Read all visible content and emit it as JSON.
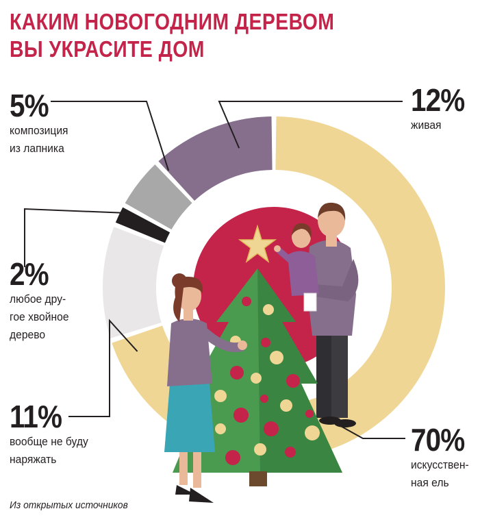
{
  "title": {
    "line1": "КАКИМ НОВОГОДНИМ ДЕРЕВОМ",
    "line2": "ВЫ УКРАСИТЕ ДОМ"
  },
  "source": "Из открытых источников",
  "colors": {
    "title": "#c4234a",
    "artificial": "#efd694",
    "live": "#866f8c",
    "lapnik": "#a9a8a9",
    "other_conifer": "#231f20",
    "none": "#e9e7e8",
    "center": "#c4234a",
    "leader": "#231f20"
  },
  "chart_data": {
    "type": "pie",
    "title": "КАКИМ НОВОГОДНИМ ДЕРЕВОМ ВЫ УКРАСИТЕ ДОМ",
    "slices": [
      {
        "label": "искусственная ель",
        "value": 70,
        "pct_text": "70%",
        "desc_text": "искусствен-\nная ель",
        "color": "#efd694"
      },
      {
        "label": "вообще не буду наряжать",
        "value": 11,
        "pct_text": "11%",
        "desc_text": "вообще не буду\nнаряжать",
        "color": "#e9e7e8"
      },
      {
        "label": "любое другое хвойное дерево",
        "value": 2,
        "pct_text": "2%",
        "desc_text": "любое дру-\nгое хвойное\nдерево",
        "color": "#231f20"
      },
      {
        "label": "композиция из лапника",
        "value": 5,
        "pct_text": "5%",
        "desc_text": "композиция\nиз лапника",
        "color": "#a9a8a9"
      },
      {
        "label": "живая",
        "value": 12,
        "pct_text": "12%",
        "desc_text": "живая",
        "color": "#866f8c"
      }
    ]
  }
}
